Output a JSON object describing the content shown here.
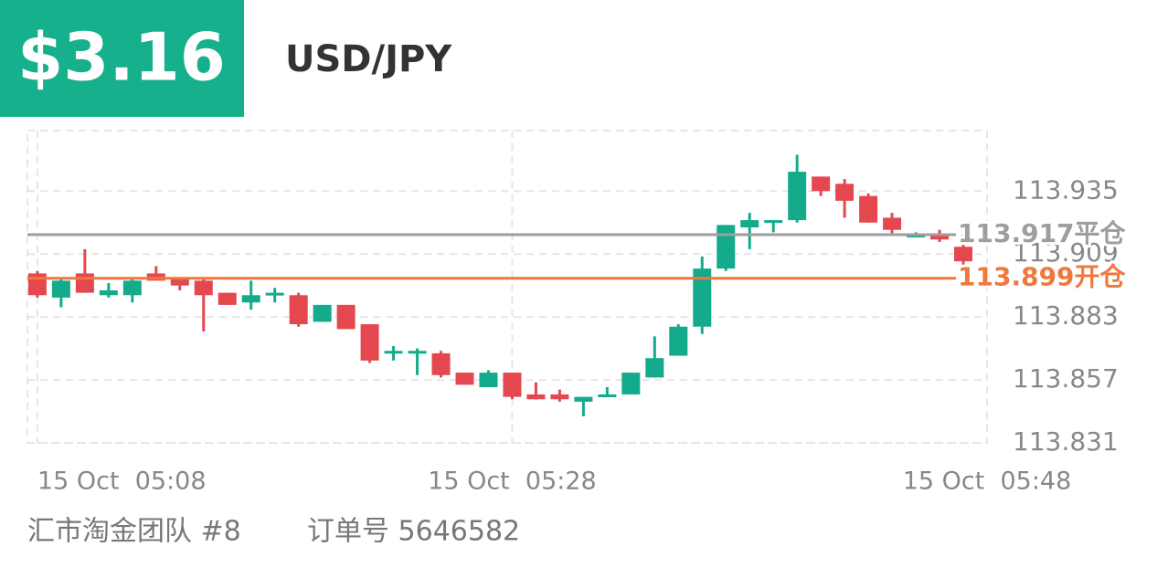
{
  "header": {
    "amount": "$3.16"
  },
  "chart_data": {
    "type": "candlestick",
    "title": "USD/JPY",
    "x": [
      0,
      1,
      2,
      3,
      4,
      5,
      6,
      7,
      8,
      9,
      10,
      11,
      12,
      13,
      14,
      15,
      16,
      17,
      18,
      19,
      20,
      21,
      22,
      23,
      24,
      25,
      26,
      27,
      28,
      29,
      30,
      31,
      32,
      33,
      34,
      35,
      36,
      37,
      38,
      39
    ],
    "open": [
      113.901,
      113.891,
      113.901,
      113.892,
      113.892,
      113.901,
      113.899,
      113.898,
      113.893,
      113.889,
      113.892,
      113.892,
      113.881,
      113.888,
      113.88,
      113.868,
      113.868,
      113.868,
      113.86,
      113.854,
      113.86,
      113.851,
      113.851,
      113.848,
      113.85,
      113.851,
      113.858,
      113.867,
      113.879,
      113.903,
      113.92,
      113.922,
      113.923,
      113.941,
      113.938,
      113.933,
      113.924,
      113.916,
      113.917,
      113.912
    ],
    "high": [
      113.902,
      113.899,
      113.911,
      113.897,
      113.899,
      113.904,
      113.899,
      113.899,
      113.893,
      113.898,
      113.895,
      113.893,
      113.888,
      113.888,
      113.88,
      113.871,
      113.87,
      113.869,
      113.86,
      113.861,
      113.86,
      113.856,
      113.853,
      113.85,
      113.854,
      113.86,
      113.875,
      113.88,
      113.908,
      113.921,
      113.926,
      113.923,
      113.95,
      113.941,
      113.94,
      113.934,
      113.926,
      113.918,
      113.919,
      113.917
    ],
    "low": [
      113.891,
      113.887,
      113.893,
      113.891,
      113.889,
      113.898,
      113.894,
      113.877,
      113.888,
      113.886,
      113.889,
      113.879,
      113.881,
      113.878,
      113.864,
      113.865,
      113.859,
      113.858,
      113.855,
      113.854,
      113.849,
      113.849,
      113.848,
      113.842,
      113.85,
      113.851,
      113.858,
      113.867,
      113.876,
      113.902,
      113.911,
      113.918,
      113.922,
      113.933,
      113.924,
      113.922,
      113.917,
      113.916,
      113.914,
      113.904
    ],
    "close": [
      113.892,
      113.898,
      113.893,
      113.894,
      113.898,
      113.898,
      113.896,
      113.892,
      113.888,
      113.892,
      113.893,
      113.88,
      113.888,
      113.878,
      113.865,
      113.869,
      113.869,
      113.859,
      113.855,
      113.86,
      113.85,
      113.849,
      113.849,
      113.85,
      113.851,
      113.86,
      113.866,
      113.879,
      113.903,
      113.921,
      113.923,
      113.923,
      113.943,
      113.935,
      113.931,
      113.922,
      113.919,
      113.917,
      113.915,
      113.906
    ],
    "up_color": "#13ab8c",
    "down_color": "#e5474f",
    "xlim": [
      -0.42,
      40
    ],
    "xticks": [
      {
        "value": 0,
        "label": "15 Oct  05:08"
      },
      {
        "value": 20,
        "label": "15 Oct  05:28"
      },
      {
        "value": 40,
        "label": "15 Oct  05:48"
      }
    ],
    "ylim": [
      113.831,
      113.96
    ],
    "yticks": [
      113.831,
      113.857,
      113.883,
      113.909,
      113.935
    ],
    "grid": true,
    "lines": [
      {
        "value": 113.917,
        "label": "平仓",
        "color": "#9e9e9e"
      },
      {
        "value": 113.899,
        "label": "开仓",
        "color": "#f0783c"
      }
    ]
  },
  "footer": {
    "team": "汇市淘金团队 #8",
    "order": "订单号 5646582"
  }
}
